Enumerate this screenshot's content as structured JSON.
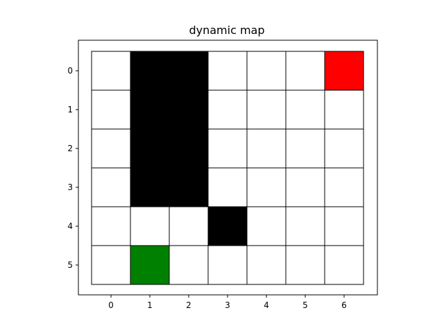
{
  "chart_data": {
    "type": "heatmap",
    "title": "dynamic map",
    "xlabel": "",
    "ylabel": "",
    "x_ticks": [
      "0",
      "1",
      "2",
      "3",
      "4",
      "5",
      "6"
    ],
    "y_ticks": [
      "0",
      "1",
      "2",
      "3",
      "4",
      "5"
    ],
    "xlim": [
      -0.75,
      6.75
    ],
    "ylim": [
      5.75,
      -0.5
    ],
    "grid": [
      [
        "free",
        "obstacle",
        "obstacle",
        "free",
        "free",
        "free",
        "goal"
      ],
      [
        "free",
        "obstacle",
        "obstacle",
        "free",
        "free",
        "free",
        "free"
      ],
      [
        "free",
        "obstacle",
        "obstacle",
        "free",
        "free",
        "free",
        "free"
      ],
      [
        "free",
        "obstacle",
        "obstacle",
        "free",
        "free",
        "free",
        "free"
      ],
      [
        "free",
        "free",
        "free",
        "obstacle",
        "free",
        "free",
        "free"
      ],
      [
        "free",
        "start",
        "free",
        "free",
        "free",
        "free",
        "free"
      ]
    ],
    "cell_colors": {
      "free": "#ffffff",
      "obstacle": "#000000",
      "goal": "#ff0000",
      "start": "#008000"
    }
  }
}
